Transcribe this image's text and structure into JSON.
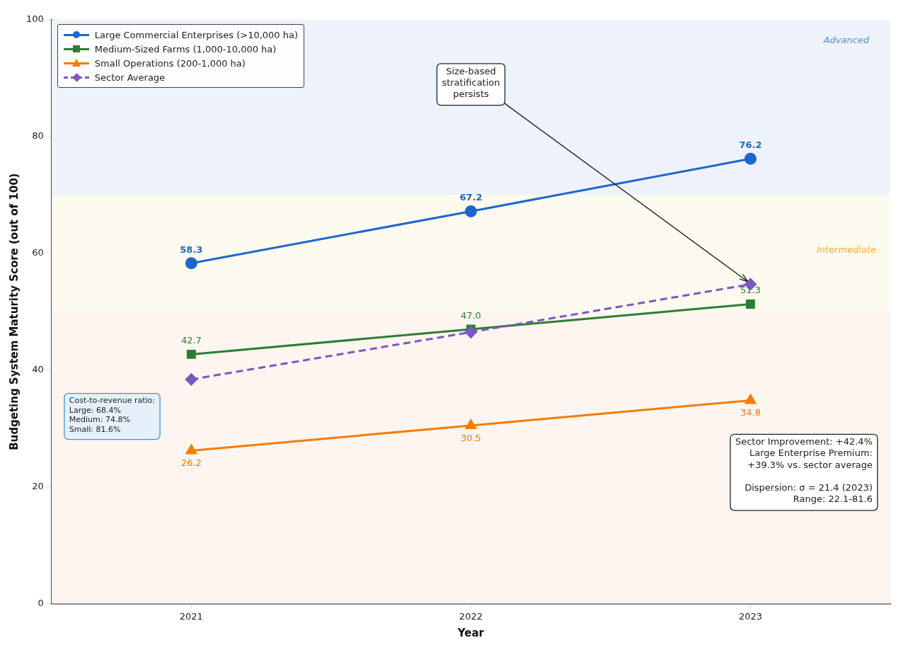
{
  "chart_data": {
    "type": "line",
    "xlabel": "Year",
    "ylabel": "Budgeting System Maturity Score (out of 100)",
    "categories": [
      "2021",
      "2022",
      "2023"
    ],
    "series": [
      {
        "name": "Large Commercial Enterprises (>10,000 ha)",
        "color": "#1f66cc",
        "values": [
          58.3,
          67.2,
          76.2
        ],
        "marker": "circle",
        "line_style": "solid",
        "value_labels": [
          "58.3",
          "67.2",
          "76.2"
        ]
      },
      {
        "name": "Medium-Sized Farms (1,000-10,000 ha)",
        "color": "#2e7d32",
        "values": [
          42.7,
          47.0,
          51.3
        ],
        "marker": "square",
        "line_style": "solid",
        "value_labels": [
          "42.7",
          "47.0",
          "51.3"
        ]
      },
      {
        "name": "Small Operations (200-1,000 ha)",
        "color": "#f57c00",
        "values": [
          26.2,
          30.5,
          34.8
        ],
        "marker": "triangle",
        "line_style": "solid",
        "value_labels": [
          "26.2",
          "30.5",
          "34.8"
        ]
      },
      {
        "name": "Sector Average",
        "color": "#7e57c2",
        "values": [
          38.4,
          46.5,
          54.7
        ],
        "marker": "diamond",
        "line_style": "dashed"
      }
    ],
    "ylim": [
      0,
      100
    ],
    "yticks": [
      0,
      20,
      40,
      60,
      80,
      100
    ],
    "grid": true,
    "legend": "top left",
    "bands": [
      {
        "axis": "y",
        "from": 70,
        "to": 100,
        "label": "Advanced",
        "color": "#eef3fb"
      },
      {
        "axis": "y",
        "from": 50,
        "to": 70,
        "label": "Intermediate",
        "color": "#fdfaf0"
      },
      {
        "axis": "y",
        "from": 0,
        "to": 50,
        "label": null,
        "color": "#fcf5f0"
      }
    ],
    "annotations": [
      {
        "text": "Size-based\nstratification\npersists",
        "x": "2023",
        "y": 54.7
      },
      "Cost-to-revenue ratio:\nLarge: 68.4%\nMedium: 74.8%\nSmall: 81.6%",
      "Sector Improvement: +42.4%\nLarge Enterprise Premium:\n+39.3% vs. sector average\n\nDispersion: σ = 21.4 (2023)\nRange: 22.1-81.6"
    ]
  }
}
